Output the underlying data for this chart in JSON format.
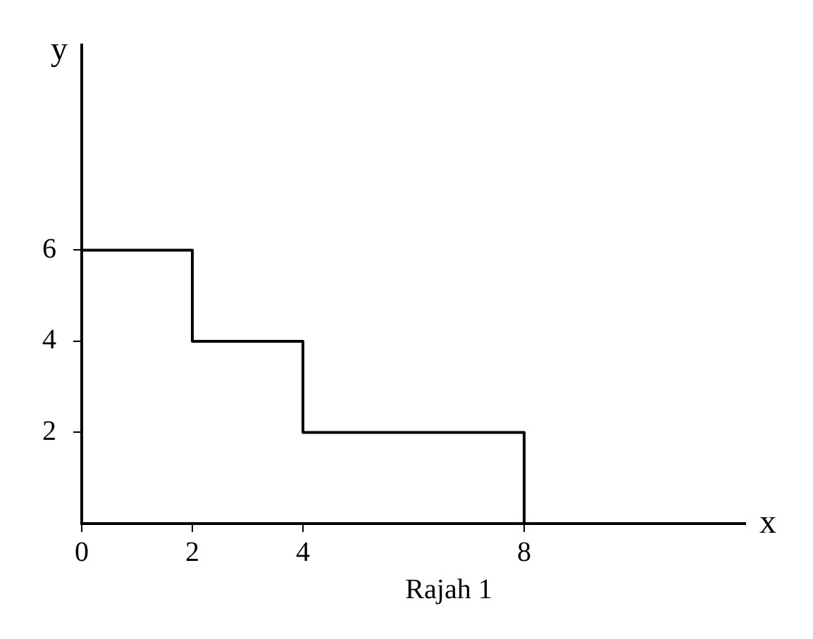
{
  "chart_data": {
    "type": "step",
    "xlabel": "x",
    "ylabel": "y",
    "x": [
      0,
      2,
      4,
      8
    ],
    "values": [
      6,
      4,
      2,
      0
    ],
    "color": "#000000",
    "xlim": [
      0,
      12
    ],
    "ylim": [
      0,
      10.5
    ],
    "xticks": [
      0,
      2,
      4,
      8
    ],
    "yticks": [
      2,
      4,
      6
    ],
    "marker": "none",
    "annotations": [
      "Rajah 1"
    ]
  }
}
